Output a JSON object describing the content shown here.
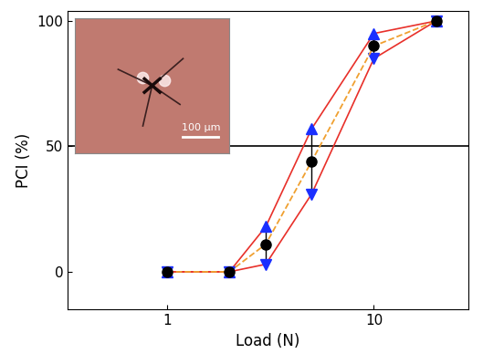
{
  "chart_data": {
    "type": "line",
    "x_label": "Load (N)",
    "y_label": "PCI (%)",
    "x": [
      1,
      2,
      3,
      5,
      10,
      20
    ],
    "values": [
      0,
      0,
      11,
      44,
      90,
      100
    ],
    "upper": [
      0,
      0,
      18,
      57,
      95,
      100
    ],
    "lower": [
      0,
      0,
      3,
      31,
      85,
      100
    ],
    "hline": 50,
    "log": "x",
    "marker": "o",
    "line_style": "dashed",
    "xlim": [
      0.33,
      28.7
    ],
    "xticks": [
      1,
      10
    ],
    "ylim": [
      -15,
      104
    ],
    "yticks": [
      0,
      50,
      100
    ],
    "grid": false,
    "annotations": [
      "100 µm"
    ]
  }
}
